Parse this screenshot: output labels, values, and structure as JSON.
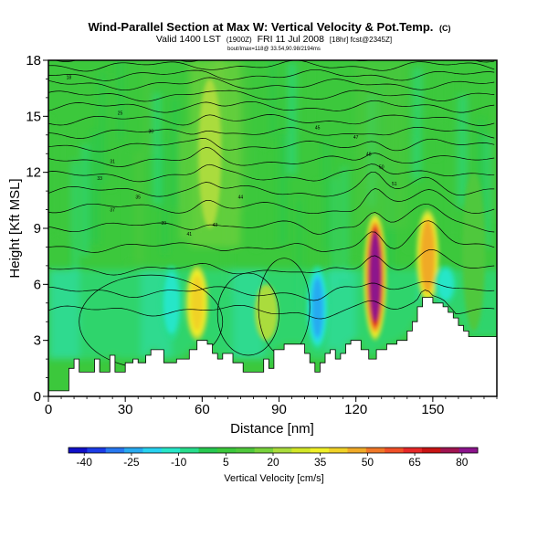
{
  "chart_data": {
    "type": "heatmap",
    "title": "Wind-Parallel Section at Max W: Vertical Velocity & Pot.Temp.",
    "title_mark": "(C)",
    "subtitle_prefix": "Valid 1400 LST",
    "subtitle_paren": "(1900Z)",
    "subtitle_date": "FRI 11 Jul 2008",
    "subtitle_suffix": "[18hr] fcst@2345Z]",
    "subtitle2": "bout/Imax=118@ 33.54,90.98/2194ms",
    "xlabel": "Distance [nm]",
    "ylabel": "Height [Kft MSL]",
    "xlim": [
      0,
      175
    ],
    "ylim": [
      0,
      18
    ],
    "x_ticks": [
      0,
      30,
      60,
      90,
      120,
      150
    ],
    "y_ticks": [
      0,
      3,
      6,
      9,
      12,
      15,
      18
    ],
    "colorbar": {
      "label": "Vertical Velocity [cm/s]",
      "ticks": [
        -40,
        -25,
        -10,
        5,
        20,
        35,
        50,
        65,
        80
      ],
      "min": -45,
      "max": 85,
      "colors": [
        "#1010c8",
        "#1c3ce6",
        "#2878f0",
        "#28aaf0",
        "#28d2f0",
        "#28e6c8",
        "#28dc8c",
        "#28c850",
        "#3cc83c",
        "#50c83c",
        "#78d23c",
        "#aadc3c",
        "#d2e628",
        "#f0f028",
        "#f0d228",
        "#f0aa28",
        "#f07828",
        "#f05028",
        "#e62828",
        "#c81414",
        "#a01450",
        "#8c148c"
      ]
    },
    "terrain_profile": {
      "x": [
        0,
        5,
        8,
        10,
        12,
        16,
        18,
        20,
        22,
        24,
        26,
        28,
        30,
        33,
        35,
        38,
        40,
        45,
        50,
        55,
        58,
        62,
        64,
        66,
        68,
        72,
        76,
        80,
        84,
        86,
        88,
        92,
        96,
        100,
        102,
        104,
        106,
        108,
        110,
        112,
        114,
        116,
        118,
        120,
        122,
        125,
        128,
        132,
        136,
        140,
        142,
        144,
        146,
        148,
        150,
        154,
        156,
        158,
        160,
        162,
        164,
        166,
        168,
        175
      ],
      "height": [
        0.3,
        0.3,
        1.5,
        2.0,
        1.3,
        1.3,
        2.0,
        1.3,
        1.3,
        2.2,
        1.3,
        1.3,
        1.8,
        2.0,
        1.8,
        2.2,
        2.5,
        1.8,
        2.0,
        2.5,
        3.0,
        2.8,
        2.3,
        2.0,
        2.3,
        1.8,
        1.3,
        1.3,
        2.0,
        1.5,
        2.5,
        2.8,
        2.8,
        2.3,
        1.8,
        1.3,
        1.8,
        2.3,
        2.5,
        2.0,
        2.3,
        2.8,
        3.0,
        3.0,
        2.5,
        2.0,
        2.5,
        2.8,
        3.0,
        3.5,
        4.0,
        4.8,
        5.3,
        5.3,
        5.0,
        4.8,
        4.5,
        4.2,
        3.8,
        3.5,
        3.2,
        3.2,
        3.2,
        3.2
      ]
    },
    "theta_contours": {
      "levels_K": [
        306,
        308,
        310,
        312,
        314,
        316,
        318,
        320,
        322,
        324,
        326,
        328,
        330,
        332,
        334,
        336,
        338,
        340
      ],
      "base_heights_kft": [
        4.6,
        5.6,
        6.8,
        8.0,
        9.1,
        10.1,
        11.0,
        11.8,
        12.6,
        13.4,
        14.1,
        14.8,
        15.5,
        16.1,
        16.7,
        17.2,
        17.7,
        18.2
      ],
      "label_values": [
        18,
        25,
        30,
        31,
        33,
        35,
        37,
        39,
        41,
        43,
        44,
        45,
        47,
        48,
        50,
        51
      ]
    },
    "updraft_cores": [
      {
        "x": 58,
        "z_bottom": 3.0,
        "z_top": 7.0,
        "w": 40
      },
      {
        "x": 63,
        "z_bottom": 9.0,
        "z_top": 17.0,
        "w": 20
      },
      {
        "x": 85,
        "z_bottom": 3.0,
        "z_top": 6.0,
        "w": 25
      },
      {
        "x": 127.5,
        "z_bottom": 3.0,
        "z_top": 9.8,
        "w": 83
      },
      {
        "x": 148,
        "z_bottom": 5.0,
        "z_top": 10.0,
        "w": 45
      },
      {
        "x": 166,
        "z_bottom": 3.5,
        "z_top": 12.0,
        "w": 12
      }
    ],
    "downdraft_cores": [
      {
        "x": 48,
        "z_bottom": 3.0,
        "z_top": 7.0,
        "w": -12
      },
      {
        "x": 105,
        "z_bottom": 2.5,
        "z_top": 7.0,
        "w": -22
      },
      {
        "x": 155,
        "z_bottom": 5.0,
        "z_top": 7.0,
        "w": -10
      }
    ]
  }
}
